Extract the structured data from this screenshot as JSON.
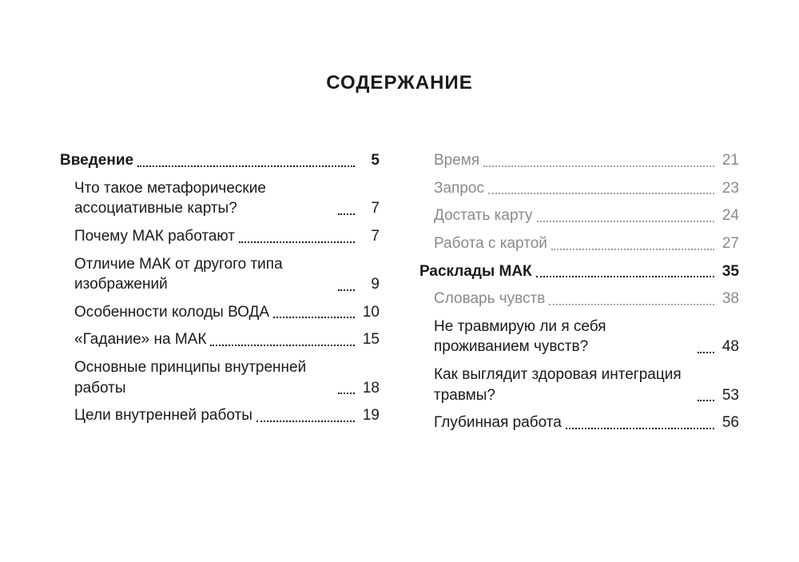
{
  "title": "СОДЕРЖАНИЕ",
  "colors": {
    "text": "#1a1a1a",
    "muted": "#8a8a8a",
    "background": "#ffffff"
  },
  "typography": {
    "title_fontsize": 24,
    "entry_fontsize": 19,
    "font_family": "Futura / geometric sans-serif"
  },
  "columns": [
    {
      "entries": [
        {
          "level": 0,
          "label": "Введение",
          "page": "5"
        },
        {
          "level": 1,
          "label": "Что такое метафорические ассоциативные карты?",
          "page": "7"
        },
        {
          "level": 1,
          "label": "Почему МАК работают",
          "page": "7"
        },
        {
          "level": 1,
          "label": "Отличие МАК от другого типа изображений",
          "page": "9"
        },
        {
          "level": 1,
          "label": "Особенности колоды ВОДА",
          "page": "10"
        },
        {
          "level": 1,
          "label": "«Гадание» на МАК",
          "page": "15"
        },
        {
          "level": 1,
          "label": "Основные принципы внутренней работы",
          "page": "18"
        },
        {
          "level": 1,
          "label": "Цели внутренней работы",
          "page": "19"
        }
      ]
    },
    {
      "entries": [
        {
          "level": 2,
          "label": "Время",
          "page": "21"
        },
        {
          "level": 2,
          "label": "Запрос",
          "page": "23"
        },
        {
          "level": 2,
          "label": "Достать карту",
          "page": "24"
        },
        {
          "level": 2,
          "label": "Работа с картой",
          "page": "27"
        },
        {
          "level": 0,
          "label": "Расклады МАК",
          "page": "35"
        },
        {
          "level": 2,
          "label": "Словарь чувств",
          "page": "38"
        },
        {
          "level": 1,
          "label": "Не травмирую ли я себя проживанием чувств?",
          "page": "48"
        },
        {
          "level": 1,
          "label": "Как выглядит здоровая интеграция травмы?",
          "page": "53"
        },
        {
          "level": 1,
          "label": "Глубинная работа",
          "page": "56"
        }
      ]
    }
  ]
}
